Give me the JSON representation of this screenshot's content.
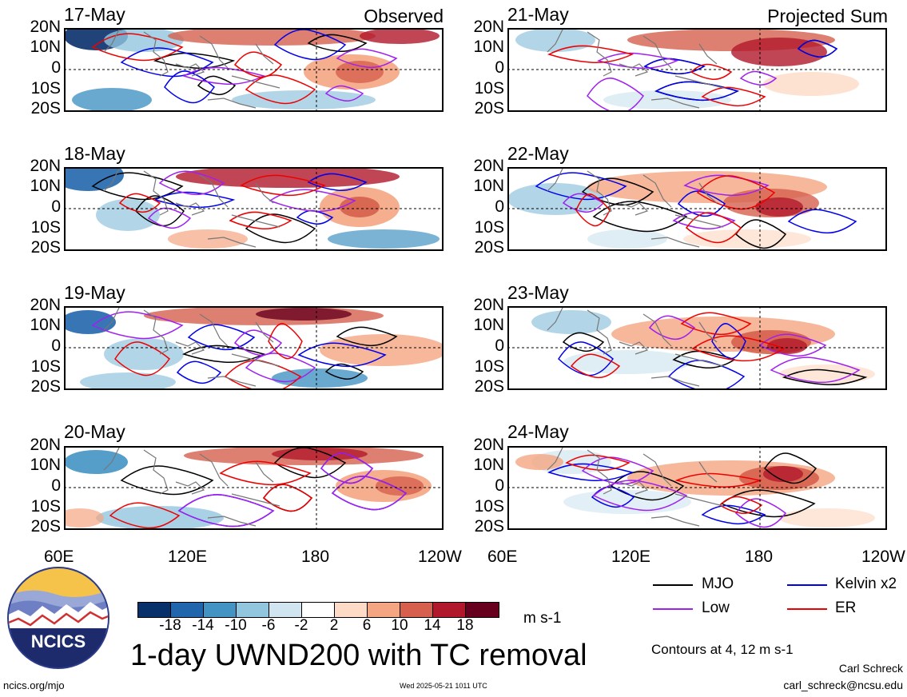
{
  "panels_left": [
    "17-May",
    "18-May",
    "19-May",
    "20-May"
  ],
  "panels_right": [
    "21-May",
    "22-May",
    "23-May",
    "24-May"
  ],
  "corner_left": "Observed",
  "corner_right": "Projected Sum",
  "lat_labels": [
    "20N",
    "10N",
    "0",
    "10S",
    "20S"
  ],
  "lon_labels": [
    "60E",
    "120E",
    "180",
    "120W"
  ],
  "colorbar": {
    "colors": [
      "#08306b",
      "#2166ac",
      "#4393c3",
      "#92c5de",
      "#d1e5f0",
      "#ffffff",
      "#fddbc7",
      "#f4a582",
      "#d6604d",
      "#b2182b",
      "#67001f"
    ],
    "labels": [
      "-18",
      "-14",
      "-10",
      "-6",
      "-2",
      "2",
      "6",
      "10",
      "14",
      "18"
    ],
    "units": "m s-1"
  },
  "title": "1-day UWND200 with TC removal",
  "legend": [
    {
      "label": "MJO",
      "color": "#000000"
    },
    {
      "label": "Kelvin x2",
      "color": "#0000ee"
    },
    {
      "label": "Low",
      "color": "#a020f0"
    },
    {
      "label": "ER",
      "color": "#ee0000"
    }
  ],
  "contours_note": "Contours at 4, 12 m s-1",
  "author": "Carl Schreck",
  "email": "carl_schreck@ncsu.edu",
  "site": "ncics.org/mjo",
  "timestamp": "Wed 2025-05-21 1011 UTC",
  "logo_text": "NCICS"
}
